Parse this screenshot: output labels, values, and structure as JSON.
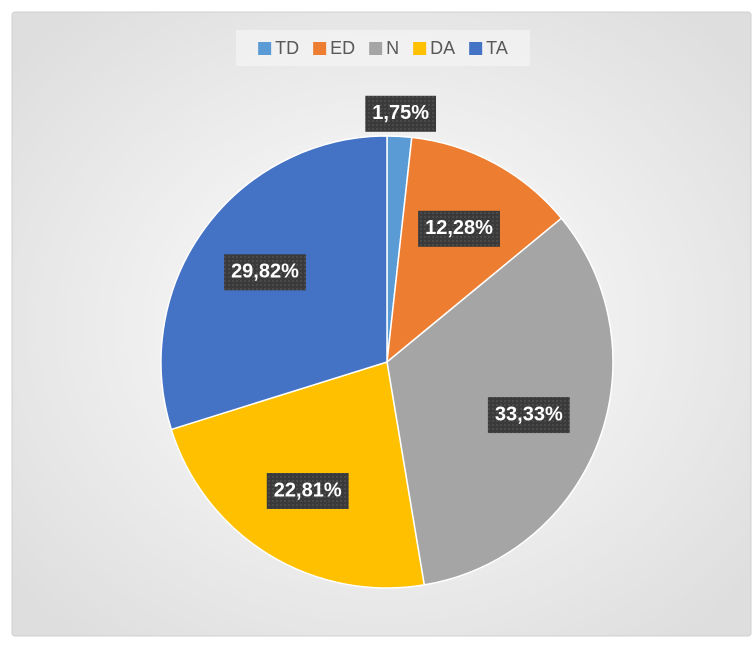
{
  "chart_data": {
    "type": "pie",
    "categories": [
      "TD",
      "ED",
      "N",
      "DA",
      "TA"
    ],
    "values": [
      1.75,
      12.28,
      33.33,
      22.81,
      29.82
    ],
    "value_labels": [
      "1,75%",
      "12,28%",
      "33,33%",
      "22,81%",
      "29,82%"
    ],
    "colors": [
      "#5b9bd5",
      "#ed7d31",
      "#a5a5a5",
      "#ffc000",
      "#4472c4"
    ],
    "legend": "top"
  }
}
